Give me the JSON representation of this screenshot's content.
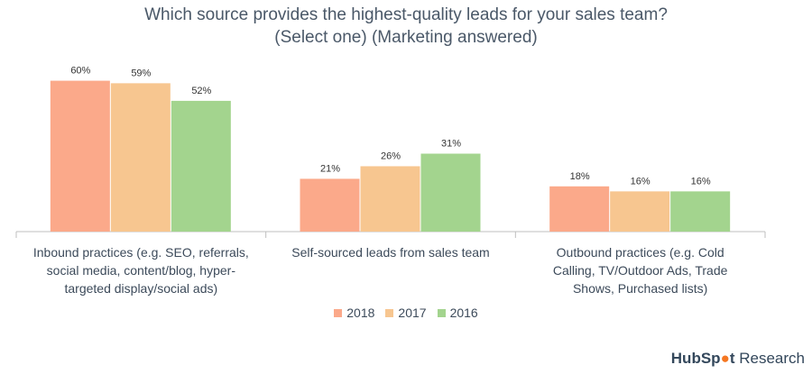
{
  "title_line1": "Which source provides the highest-quality leads for your sales team?",
  "title_line2": "(Select one) (Marketing answered)",
  "brand": {
    "name_a": "HubSp",
    "name_b": "t",
    "suffix": " Research"
  },
  "colors": {
    "2018": "#fba98a",
    "2017": "#f7c690",
    "2016": "#a3d48e",
    "axis": "#bfbfbf",
    "text": "#3c4a5a"
  },
  "chart_data": {
    "type": "bar",
    "title": "Which source provides the highest-quality leads for your sales team? (Select one) (Marketing answered)",
    "categories": [
      [
        "Inbound practices (e.g. SEO, referrals,",
        "social media, content/blog, hyper-",
        "targeted display/social ads)"
      ],
      [
        "Self-sourced leads from sales team"
      ],
      [
        "Outbound practices (e.g. Cold",
        "Calling, TV/Outdoor Ads, Trade",
        "Shows, Purchased lists)"
      ]
    ],
    "series": [
      {
        "name": "2018",
        "values": [
          60,
          21,
          18
        ],
        "labels": [
          "60%",
          "21%",
          "18%"
        ]
      },
      {
        "name": "2017",
        "values": [
          59,
          26,
          16
        ],
        "labels": [
          "59%",
          "26%",
          "16%"
        ]
      },
      {
        "name": "2016",
        "values": [
          52,
          31,
          16
        ],
        "labels": [
          "52%",
          "31%",
          "16%"
        ]
      }
    ],
    "ylim": [
      0,
      62
    ],
    "legend_position": "bottom",
    "grid": false
  }
}
